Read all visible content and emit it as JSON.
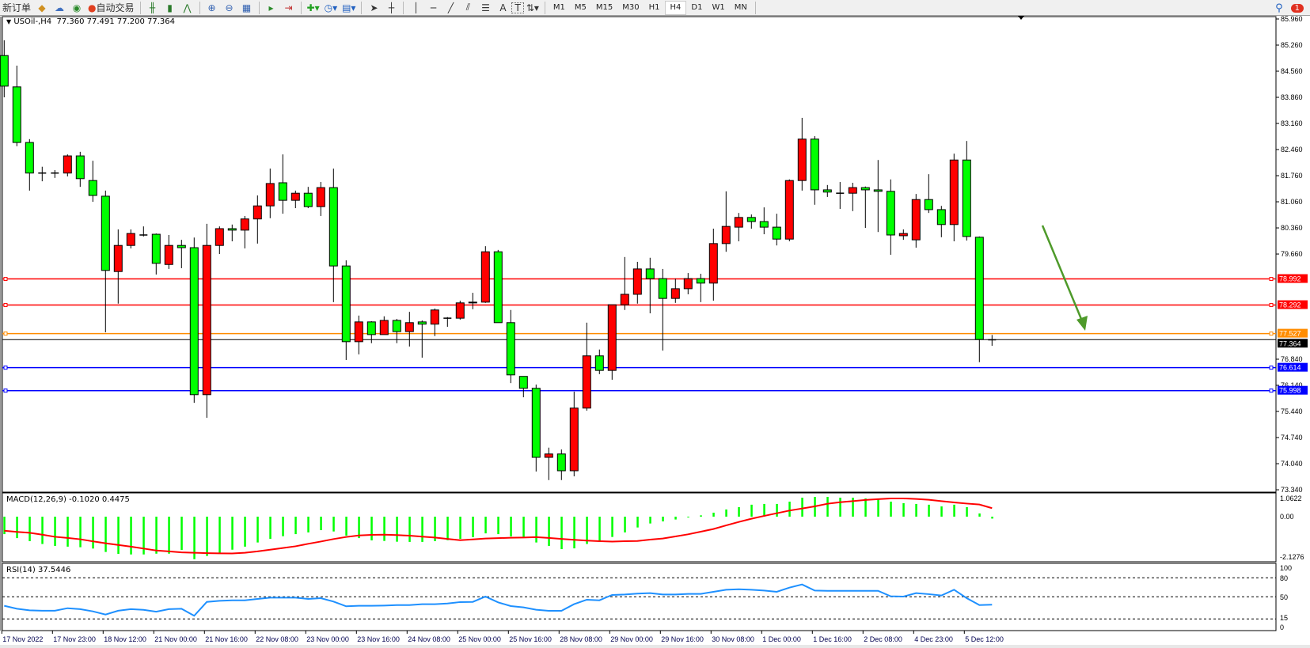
{
  "toolbar": {
    "new_order": "新订单",
    "auto_trading": "自动交易",
    "icons": [
      "experts-icon",
      "signals-icon",
      "auto-trading-icon",
      "bar-chart-icon",
      "candlestick-icon",
      "line-chart-icon",
      "zoom-in-icon",
      "zoom-out-icon",
      "tile-windows-icon",
      "chart-shift-icon",
      "autoscroll-icon",
      "indicators-icon",
      "periods-icon",
      "templates-icon",
      "cursor-icon",
      "crosshair-icon",
      "vertical-line-icon",
      "horizontal-line-icon",
      "trendline-icon",
      "equidistant-channel-icon",
      "fibonacci-icon",
      "text-icon",
      "text-label-icon",
      "arrows-icon"
    ],
    "tool_text": {
      "text": "A",
      "label": "T"
    },
    "timeframes": [
      "M1",
      "M5",
      "M15",
      "M30",
      "H1",
      "H4",
      "D1",
      "W1",
      "MN"
    ],
    "active_timeframe": "H4",
    "notification_count": "1"
  },
  "symbol": {
    "name": "USOil-,H4",
    "open": "77.360",
    "high": "77.491",
    "low": "77.200",
    "close": "77.364"
  },
  "colors": {
    "bear": "#00ff00",
    "bull": "#ff0000",
    "macd_hist": "#00ff00",
    "macd_signal": "#ff0000",
    "rsi": "#1e90ff",
    "arrow": "#4e9a2a"
  },
  "chart_data": {
    "type": "candlestick",
    "price_axis": [
      "85.960",
      "85.260",
      "84.560",
      "83.860",
      "83.160",
      "82.460",
      "81.760",
      "81.060",
      "80.360",
      "79.660",
      "76.840",
      "76.140",
      "75.440",
      "74.740",
      "74.040",
      "73.340"
    ],
    "ylim": [
      73.34,
      85.96
    ],
    "candles_ohlc": [
      [
        84.98,
        85.39,
        83.86,
        84.16
      ],
      [
        84.14,
        84.71,
        82.55,
        82.65
      ],
      [
        82.65,
        82.74,
        81.36,
        81.83
      ],
      [
        81.83,
        82.0,
        81.61,
        81.83
      ],
      [
        81.83,
        81.91,
        81.7,
        81.83
      ],
      [
        81.83,
        82.33,
        81.74,
        82.29
      ],
      [
        82.29,
        82.4,
        81.46,
        81.68
      ],
      [
        81.63,
        82.16,
        81.06,
        81.23
      ],
      [
        81.21,
        81.36,
        77.56,
        79.22
      ],
      [
        79.19,
        80.32,
        78.33,
        79.89
      ],
      [
        79.89,
        80.32,
        79.81,
        80.21
      ],
      [
        80.17,
        80.4,
        80.13,
        80.17
      ],
      [
        80.19,
        80.21,
        79.11,
        79.41
      ],
      [
        79.38,
        80.17,
        79.26,
        79.89
      ],
      [
        79.89,
        80.04,
        79.28,
        79.83
      ],
      [
        79.83,
        80.1,
        75.67,
        75.89
      ],
      [
        75.89,
        80.47,
        75.27,
        79.89
      ],
      [
        79.89,
        80.4,
        79.66,
        80.34
      ],
      [
        80.34,
        80.45,
        80.0,
        80.3
      ],
      [
        80.3,
        80.68,
        79.81,
        80.6
      ],
      [
        80.6,
        81.23,
        79.94,
        80.95
      ],
      [
        80.95,
        81.95,
        80.62,
        81.55
      ],
      [
        81.57,
        82.33,
        80.74,
        81.1
      ],
      [
        81.1,
        81.36,
        80.89,
        81.29
      ],
      [
        81.29,
        81.46,
        80.89,
        80.93
      ],
      [
        80.93,
        81.59,
        80.68,
        81.44
      ],
      [
        81.44,
        81.95,
        78.37,
        79.34
      ],
      [
        79.34,
        79.49,
        76.82,
        77.31
      ],
      [
        77.31,
        78.01,
        76.97,
        77.84
      ],
      [
        77.84,
        77.86,
        77.27,
        77.5
      ],
      [
        77.5,
        77.99,
        77.5,
        77.88
      ],
      [
        77.88,
        77.92,
        77.27,
        77.58
      ],
      [
        77.58,
        78.11,
        77.18,
        77.82
      ],
      [
        77.84,
        77.88,
        76.88,
        77.78
      ],
      [
        77.78,
        78.2,
        77.46,
        78.16
      ],
      [
        77.94,
        77.97,
        77.71,
        77.94
      ],
      [
        77.94,
        78.41,
        77.9,
        78.35
      ],
      [
        78.35,
        78.62,
        78.18,
        78.37
      ],
      [
        78.37,
        79.87,
        78.35,
        79.72
      ],
      [
        79.72,
        79.77,
        77.82,
        77.82
      ],
      [
        77.82,
        78.16,
        76.2,
        76.42
      ],
      [
        76.38,
        76.38,
        75.82,
        76.06
      ],
      [
        76.06,
        76.16,
        73.83,
        74.21
      ],
      [
        74.21,
        74.47,
        73.6,
        74.3
      ],
      [
        74.3,
        74.42,
        73.6,
        73.85
      ],
      [
        73.85,
        75.97,
        73.7,
        75.53
      ],
      [
        75.53,
        77.82,
        75.46,
        76.93
      ],
      [
        76.93,
        77.1,
        76.44,
        76.54
      ],
      [
        76.54,
        78.3,
        76.29,
        78.3
      ],
      [
        78.3,
        79.58,
        78.16,
        78.58
      ],
      [
        78.58,
        79.45,
        78.33,
        79.26
      ],
      [
        79.26,
        79.56,
        78.07,
        79.0
      ],
      [
        79.0,
        79.26,
        77.07,
        78.47
      ],
      [
        78.47,
        79.0,
        78.35,
        78.73
      ],
      [
        78.73,
        79.15,
        78.58,
        79.0
      ],
      [
        79.0,
        79.13,
        78.37,
        78.88
      ],
      [
        78.88,
        80.34,
        78.41,
        79.94
      ],
      [
        79.94,
        81.34,
        79.72,
        80.4
      ],
      [
        80.38,
        80.76,
        80.0,
        80.64
      ],
      [
        80.64,
        80.72,
        80.34,
        80.53
      ],
      [
        80.53,
        80.91,
        80.19,
        80.38
      ],
      [
        80.38,
        80.74,
        79.89,
        80.06
      ],
      [
        80.06,
        81.66,
        80.0,
        81.63
      ],
      [
        81.63,
        83.31,
        81.36,
        82.74
      ],
      [
        82.74,
        82.82,
        80.98,
        81.38
      ],
      [
        81.38,
        81.51,
        81.19,
        81.32
      ],
      [
        81.29,
        81.59,
        80.87,
        81.29
      ],
      [
        81.29,
        81.57,
        80.81,
        81.44
      ],
      [
        81.44,
        81.47,
        80.36,
        81.38
      ],
      [
        81.38,
        82.18,
        80.25,
        81.34
      ],
      [
        81.34,
        81.66,
        79.64,
        80.17
      ],
      [
        80.15,
        80.32,
        80.04,
        80.21
      ],
      [
        80.04,
        81.27,
        79.83,
        81.12
      ],
      [
        81.12,
        81.8,
        80.76,
        80.85
      ],
      [
        80.85,
        80.95,
        80.11,
        80.45
      ],
      [
        80.45,
        82.35,
        80.0,
        82.18
      ],
      [
        82.18,
        82.69,
        80.02,
        80.13
      ],
      [
        80.11,
        80.13,
        76.76,
        77.37
      ],
      [
        77.36,
        77.49,
        77.2,
        77.364
      ]
    ],
    "levels": [
      {
        "price": "78.992",
        "color": "#ff0000"
      },
      {
        "price": "78.292",
        "color": "#ff0000"
      },
      {
        "price": "77.527",
        "color": "#ff8c00"
      },
      {
        "price": "76.614",
        "color": "#0000ff"
      },
      {
        "price": "75.998",
        "color": "#0000ff"
      }
    ],
    "last_price": "77.364",
    "time_labels": [
      {
        "label": "17 Nov 2022",
        "bar": 0
      },
      {
        "label": "17 Nov 23:00",
        "bar": 4
      },
      {
        "label": "18 Nov 12:00",
        "bar": 8
      },
      {
        "label": "21 Nov 00:00",
        "bar": 12
      },
      {
        "label": "21 Nov 16:00",
        "bar": 16
      },
      {
        "label": "22 Nov 08:00",
        "bar": 20
      },
      {
        "label": "23 Nov 00:00",
        "bar": 24
      },
      {
        "label": "23 Nov 16:00",
        "bar": 28
      },
      {
        "label": "24 Nov 08:00",
        "bar": 32
      },
      {
        "label": "25 Nov 00:00",
        "bar": 36
      },
      {
        "label": "25 Nov 16:00",
        "bar": 40
      },
      {
        "label": "28 Nov 08:00",
        "bar": 44
      },
      {
        "label": "29 Nov 00:00",
        "bar": 48
      },
      {
        "label": "29 Nov 16:00",
        "bar": 52
      },
      {
        "label": "30 Nov 08:00",
        "bar": 56
      },
      {
        "label": "1 Dec 00:00",
        "bar": 60
      },
      {
        "label": "1 Dec 16:00",
        "bar": 64
      },
      {
        "label": "2 Dec 08:00",
        "bar": 68
      },
      {
        "label": "4 Dec 23:00",
        "bar": 72
      },
      {
        "label": "5 Dec 12:00",
        "bar": 76
      }
    ],
    "macd": {
      "label": "MACD(12,26,9) -0.1020 0.4475",
      "axis": [
        "1.0622",
        "0.00",
        "-2.1276"
      ],
      "ylim": [
        -2.1276,
        1.0622
      ],
      "histogram": [
        -0.92,
        -1.13,
        -1.29,
        -1.44,
        -1.54,
        -1.58,
        -1.61,
        -1.68,
        -1.86,
        -1.96,
        -1.99,
        -1.99,
        -1.95,
        -1.95,
        -1.75,
        -2.24,
        -2.07,
        -1.96,
        -1.74,
        -1.58,
        -1.36,
        -1.17,
        -1.03,
        -0.92,
        -0.83,
        -0.71,
        -0.78,
        -1.0,
        -1.13,
        -1.25,
        -1.28,
        -1.32,
        -1.33,
        -1.33,
        -1.29,
        -1.24,
        -1.17,
        -1.08,
        -0.88,
        -0.92,
        -1.04,
        -1.07,
        -1.36,
        -1.54,
        -1.71,
        -1.67,
        -1.44,
        -1.29,
        -1.07,
        -0.83,
        -0.57,
        -0.36,
        -0.25,
        -0.15,
        -0.03,
        0.07,
        0.21,
        0.38,
        0.5,
        0.63,
        0.67,
        0.67,
        0.79,
        1.0,
        1.04,
        1.04,
        1.0,
        1.0,
        0.96,
        0.92,
        0.79,
        0.71,
        0.67,
        0.63,
        0.54,
        0.63,
        0.5,
        0.17,
        -0.102
      ],
      "signal": [
        -0.74,
        -0.8,
        -0.85,
        -0.95,
        -1.06,
        -1.12,
        -1.19,
        -1.3,
        -1.4,
        -1.49,
        -1.58,
        -1.68,
        -1.78,
        -1.83,
        -1.88,
        -1.9,
        -1.92,
        -1.93,
        -1.94,
        -1.9,
        -1.83,
        -1.74,
        -1.65,
        -1.56,
        -1.43,
        -1.31,
        -1.18,
        -1.07,
        -0.99,
        -0.96,
        -0.95,
        -0.97,
        -1.0,
        -1.05,
        -1.1,
        -1.17,
        -1.24,
        -1.2,
        -1.15,
        -1.13,
        -1.11,
        -1.1,
        -1.08,
        -1.12,
        -1.17,
        -1.22,
        -1.26,
        -1.29,
        -1.31,
        -1.29,
        -1.28,
        -1.21,
        -1.15,
        -1.04,
        -0.93,
        -0.79,
        -0.65,
        -0.46,
        -0.28,
        -0.11,
        0.04,
        0.18,
        0.32,
        0.43,
        0.54,
        0.68,
        0.76,
        0.82,
        0.88,
        0.92,
        0.96,
        0.96,
        0.93,
        0.89,
        0.82,
        0.75,
        0.69,
        0.64,
        0.4475
      ]
    },
    "rsi": {
      "label": "RSI(14) 37.5446",
      "axis": [
        "100",
        "80",
        "50",
        "15",
        "0"
      ],
      "levels": [
        80,
        50,
        15
      ],
      "ylim": [
        0,
        100
      ],
      "values": [
        35.8,
        31.2,
        28.7,
        28,
        28,
        32,
        30.5,
        27,
        22,
        28,
        30.5,
        29.5,
        26.5,
        30.5,
        31.2,
        20,
        42,
        43.7,
        44.5,
        44.5,
        46.6,
        48.7,
        48.7,
        48.7,
        46.6,
        47.8,
        42.5,
        35,
        35.8,
        35.8,
        36.2,
        37,
        37,
        38.4,
        38.4,
        39.5,
        41.7,
        42,
        50.4,
        41.2,
        35.4,
        33.3,
        29.6,
        27.9,
        27.9,
        38.4,
        45.4,
        44.5,
        52.9,
        53.7,
        55,
        55.8,
        53.7,
        53.7,
        54.6,
        54.6,
        57.9,
        61.2,
        62,
        61.2,
        59.9,
        57.9,
        64.5,
        69.5,
        59.9,
        59.5,
        59.5,
        59.5,
        59.5,
        59.5,
        50.8,
        50.4,
        55.8,
        54.2,
        52.1,
        61.2,
        47.9,
        37,
        37.5446
      ]
    }
  }
}
